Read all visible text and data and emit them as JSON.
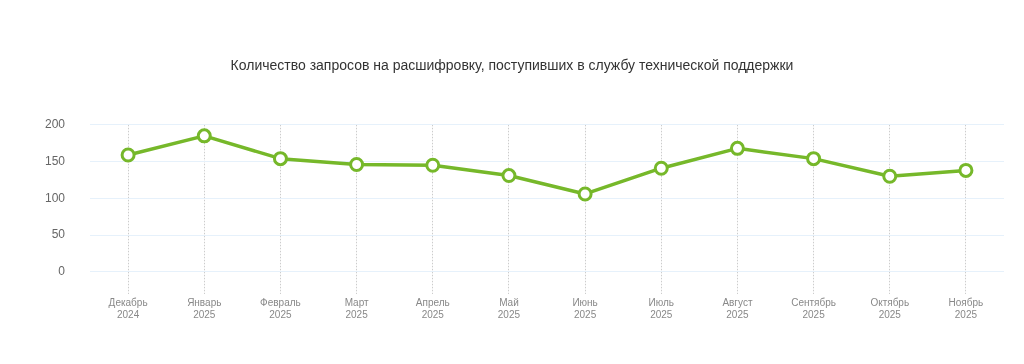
{
  "chart_data": {
    "type": "line",
    "title": "Количество запросов на расшифровку, поступивших в службу технической поддержки",
    "categories": [
      "Декабрь 2024",
      "Январь 2025",
      "Февраль 2025",
      "Март 2025",
      "Апрель 2025",
      "Май 2025",
      "Июнь 2025",
      "Июль 2025",
      "Август 2025",
      "Сентябрь 2025",
      "Октябрь 2025",
      "Ноябрь 2025"
    ],
    "series": [
      {
        "color": "#76b82a",
        "values": [
          159,
          185,
          154,
          146,
          145,
          131,
          106,
          141,
          168,
          154,
          130,
          138
        ]
      }
    ],
    "ylim": [
      -30,
      200
    ],
    "yticks": [
      0,
      50,
      100,
      150,
      200
    ],
    "grid": true,
    "marker": "circle",
    "line_style": "solid"
  }
}
